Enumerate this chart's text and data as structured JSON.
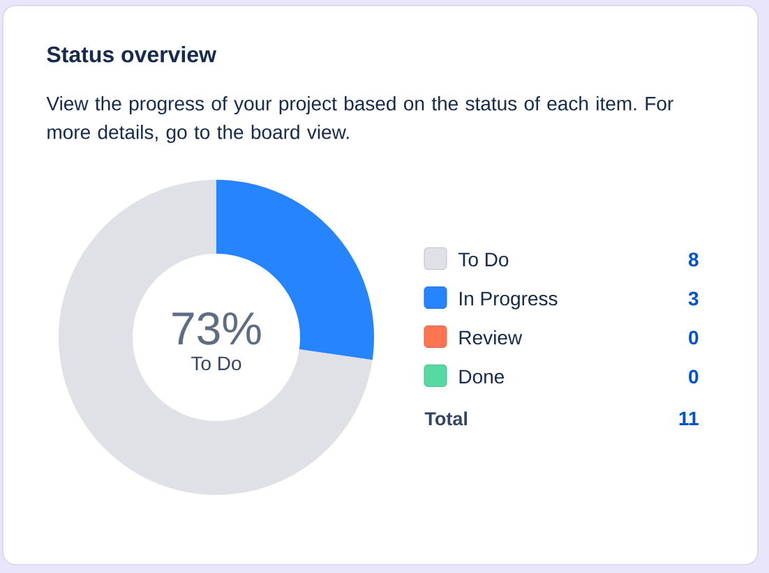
{
  "chart_data": {
    "type": "donut",
    "title": "Status overview",
    "subtitle": "View the progress of your project based on the status of each item. For more details, go to the board view.",
    "categories": [
      "To Do",
      "In Progress",
      "Review",
      "Done"
    ],
    "values": [
      8,
      3,
      0,
      0
    ],
    "value_labels": [
      "8",
      "3",
      "0",
      "0"
    ],
    "colors": [
      "#dfe1e6",
      "#2684ff",
      "#ff7452",
      "#57d9a3"
    ],
    "legend": "right",
    "totals": [
      "11"
    ],
    "annotations": [
      "73%",
      "To Do",
      "Total"
    ]
  }
}
